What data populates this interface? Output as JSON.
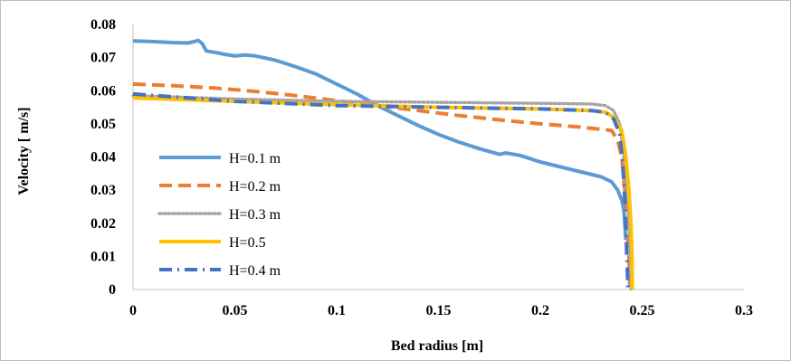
{
  "chart_data": {
    "type": "line",
    "title": "",
    "xlabel": "Bed radius [m]",
    "ylabel": "Velocity [ m/s]",
    "xlim": [
      0,
      0.3
    ],
    "ylim": [
      0,
      0.08
    ],
    "x_ticks": [
      "0",
      "0.05",
      "0.1",
      "0.15",
      "0.2",
      "0.25",
      "0.3"
    ],
    "y_ticks": [
      "0",
      "0.01",
      "0.02",
      "0.03",
      "0.04",
      "0.05",
      "0.06",
      "0.07",
      "0.08"
    ],
    "grid": false,
    "legend_position": "left",
    "series": [
      {
        "name": "H=0.1 m",
        "color": "#5b9bd5",
        "style": "solid",
        "points": [
          [
            0,
            0.075
          ],
          [
            0.01,
            0.0748
          ],
          [
            0.02,
            0.0745
          ],
          [
            0.027,
            0.0744
          ],
          [
            0.03,
            0.0748
          ],
          [
            0.032,
            0.0752
          ],
          [
            0.034,
            0.0742
          ],
          [
            0.036,
            0.072
          ],
          [
            0.04,
            0.0716
          ],
          [
            0.045,
            0.071
          ],
          [
            0.05,
            0.0705
          ],
          [
            0.055,
            0.0708
          ],
          [
            0.06,
            0.0705
          ],
          [
            0.07,
            0.0692
          ],
          [
            0.08,
            0.0672
          ],
          [
            0.09,
            0.065
          ],
          [
            0.1,
            0.062
          ],
          [
            0.11,
            0.059
          ],
          [
            0.12,
            0.0555
          ],
          [
            0.13,
            0.0525
          ],
          [
            0.14,
            0.0495
          ],
          [
            0.15,
            0.0468
          ],
          [
            0.16,
            0.0445
          ],
          [
            0.17,
            0.0425
          ],
          [
            0.18,
            0.0408
          ],
          [
            0.183,
            0.0412
          ],
          [
            0.19,
            0.0405
          ],
          [
            0.2,
            0.0385
          ],
          [
            0.21,
            0.037
          ],
          [
            0.22,
            0.0355
          ],
          [
            0.23,
            0.034
          ],
          [
            0.235,
            0.0325
          ],
          [
            0.238,
            0.03
          ],
          [
            0.24,
            0.027
          ],
          [
            0.241,
            0.024
          ],
          [
            0.2415,
            0.02
          ],
          [
            0.242,
            0.015
          ]
        ]
      },
      {
        "name": "H=0.2 m",
        "color": "#ed7d31",
        "style": "dash",
        "points": [
          [
            0,
            0.062
          ],
          [
            0.02,
            0.0615
          ],
          [
            0.04,
            0.0608
          ],
          [
            0.06,
            0.0598
          ],
          [
            0.08,
            0.0585
          ],
          [
            0.1,
            0.057
          ],
          [
            0.12,
            0.0555
          ],
          [
            0.14,
            0.054
          ],
          [
            0.16,
            0.0525
          ],
          [
            0.18,
            0.0512
          ],
          [
            0.2,
            0.05
          ],
          [
            0.22,
            0.049
          ],
          [
            0.235,
            0.048
          ],
          [
            0.238,
            0.045
          ],
          [
            0.24,
            0.04
          ],
          [
            0.2415,
            0.03
          ],
          [
            0.2425,
            0.02
          ],
          [
            0.2435,
            0.01
          ],
          [
            0.244,
            0.0
          ]
        ]
      },
      {
        "name": "H=0.3 m",
        "color": "#a5a5a5",
        "style": "dot",
        "points": [
          [
            0,
            0.0585
          ],
          [
            0.05,
            0.0575
          ],
          [
            0.1,
            0.0568
          ],
          [
            0.15,
            0.0565
          ],
          [
            0.2,
            0.0562
          ],
          [
            0.225,
            0.056
          ],
          [
            0.232,
            0.0555
          ],
          [
            0.236,
            0.054
          ],
          [
            0.239,
            0.05
          ],
          [
            0.241,
            0.04
          ],
          [
            0.2425,
            0.03
          ],
          [
            0.2435,
            0.02
          ],
          [
            0.2442,
            0.01
          ],
          [
            0.2445,
            0.0
          ]
        ]
      },
      {
        "name": "H=0.5",
        "color": "#ffc000",
        "style": "solid",
        "points": [
          [
            0,
            0.0578
          ],
          [
            0.05,
            0.0568
          ],
          [
            0.1,
            0.0558
          ],
          [
            0.15,
            0.055
          ],
          [
            0.2,
            0.0545
          ],
          [
            0.225,
            0.054
          ],
          [
            0.232,
            0.0535
          ],
          [
            0.236,
            0.052
          ],
          [
            0.24,
            0.048
          ],
          [
            0.242,
            0.04
          ],
          [
            0.2435,
            0.03
          ],
          [
            0.2445,
            0.02
          ],
          [
            0.245,
            0.01
          ],
          [
            0.2452,
            0.0
          ]
        ]
      },
      {
        "name": "H=0.4 m",
        "color": "#4472c4",
        "style": "dashdot",
        "points": [
          [
            0,
            0.059
          ],
          [
            0.05,
            0.0568
          ],
          [
            0.1,
            0.0555
          ],
          [
            0.15,
            0.055
          ],
          [
            0.2,
            0.0545
          ],
          [
            0.225,
            0.054
          ],
          [
            0.232,
            0.0535
          ],
          [
            0.236,
            0.0515
          ],
          [
            0.239,
            0.047
          ],
          [
            0.2405,
            0.038
          ],
          [
            0.2415,
            0.027
          ],
          [
            0.2422,
            0.015
          ],
          [
            0.2428,
            0.005
          ],
          [
            0.243,
            0.0
          ]
        ]
      }
    ]
  }
}
